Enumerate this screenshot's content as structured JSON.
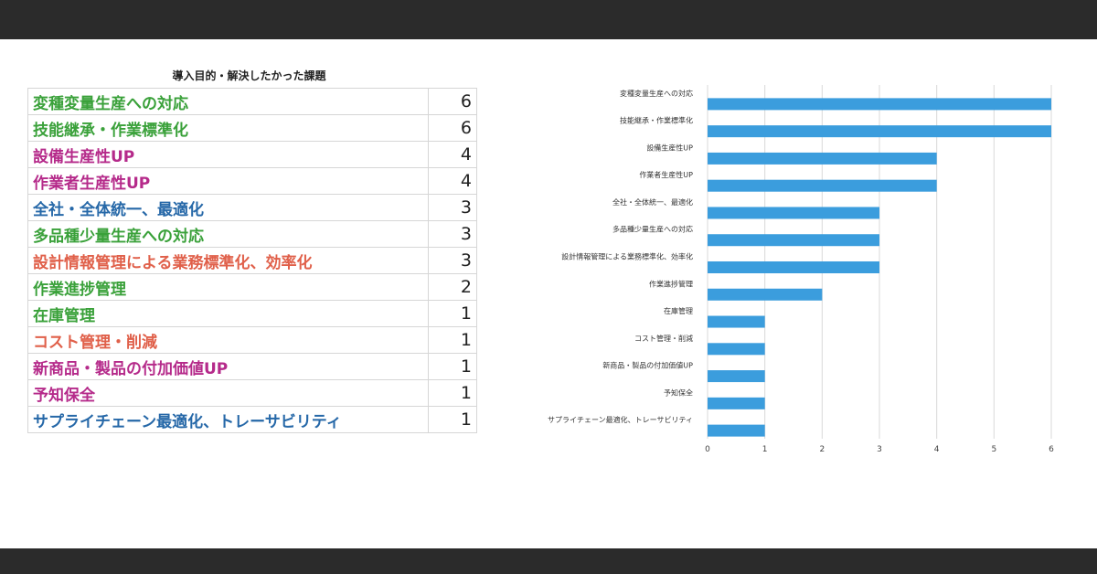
{
  "table": {
    "title": "導入目的・解決したかった課題",
    "rows": [
      {
        "label": "変種変量生産への対応",
        "value": "6",
        "color": "#3aa13a"
      },
      {
        "label": "技能継承・作業標準化",
        "value": "6",
        "color": "#3aa13a"
      },
      {
        "label": "設備生産性UP",
        "value": "4",
        "color": "#b52a8a"
      },
      {
        "label": "作業者生産性UP",
        "value": "4",
        "color": "#b52a8a"
      },
      {
        "label": "全社・全体統一、最適化",
        "value": "3",
        "color": "#2668a8"
      },
      {
        "label": "多品種少量生産への対応",
        "value": "3",
        "color": "#3aa13a"
      },
      {
        "label": "設計情報管理による業務標準化、効率化",
        "value": "3",
        "color": "#e0604a"
      },
      {
        "label": "作業進捗管理",
        "value": "2",
        "color": "#3aa13a"
      },
      {
        "label": "在庫管理",
        "value": "1",
        "color": "#3aa13a"
      },
      {
        "label": "コスト管理・削減",
        "value": "1",
        "color": "#e0604a"
      },
      {
        "label": "新商品・製品の付加価値UP",
        "value": "1",
        "color": "#b52a8a"
      },
      {
        "label": "予知保全",
        "value": "1",
        "color": "#b52a8a"
      },
      {
        "label": "サプライチェーン最適化、トレーサビリティ",
        "value": "1",
        "color": "#2668a8"
      }
    ]
  },
  "chart_data": {
    "type": "bar",
    "orientation": "horizontal",
    "title": "",
    "xlabel": "",
    "ylabel": "",
    "categories": [
      "変種変量生産への対応",
      "技能継承・作業標準化",
      "設備生産性UP",
      "作業者生産性UP",
      "全社・全体統一、最適化",
      "多品種少量生産への対応",
      "設計情報管理による業務標準化、効率化",
      "作業進捗管理",
      "在庫管理",
      "コスト管理・削減",
      "新商品・製品の付加価値UP",
      "予知保全",
      "サプライチェーン最適化、トレーサビリティ"
    ],
    "values": [
      6,
      6,
      4,
      4,
      3,
      3,
      3,
      2,
      1,
      1,
      1,
      1,
      1
    ],
    "xlim": [
      0,
      6
    ],
    "xticks": [
      0,
      1,
      2,
      3,
      4,
      5,
      6
    ],
    "grid": "vertical",
    "bar_color": "#3b9ddd",
    "grid_color": "#d9d9d9"
  }
}
